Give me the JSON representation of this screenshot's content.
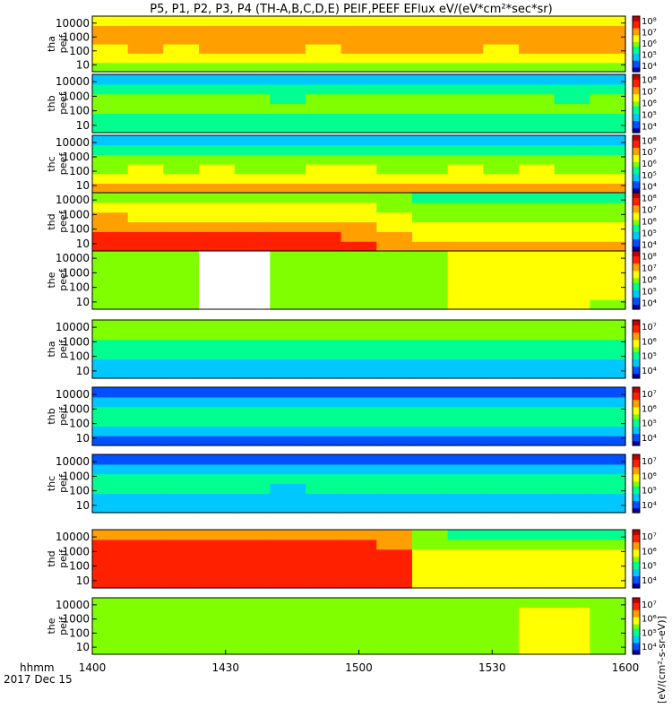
{
  "chart_data": {
    "type": "heatmap",
    "title": "P5, P1, P2, P3, P4 (TH-A,B,C,D,E) PEIF,PEEF EFlux eV/(eV*cm²*sec*sr)",
    "x_tick_labels": [
      "1400",
      "1430",
      "1500",
      "1530",
      "1600"
    ],
    "x_range_hhmm": [
      "1400",
      "1600"
    ],
    "x_corner_label": "hhmm",
    "date_label": "2017 Dec 15",
    "y_tick_labels": [
      "10",
      "100",
      "1000",
      "10000"
    ],
    "y_scale": "log",
    "colorbar_label": "[eV/(cm²-s-sr-eV)]",
    "colorscale": [
      "#0000a0",
      "#0050ff",
      "#00c8ff",
      "#00ff90",
      "#80ff00",
      "#ffff00",
      "#ffa000",
      "#ff2000",
      "#c00000"
    ],
    "panels": [
      {
        "ylabel": [
          "tha",
          "peif"
        ],
        "colorbar_ticks": [
          "10⁴",
          "10⁵",
          "10⁶",
          "10⁷",
          "10⁸"
        ],
        "time_flux_profile": [
          0.74,
          0.76,
          0.75,
          0.77,
          0.78,
          0.76,
          0.75,
          0.76,
          0.78,
          0.77,
          0.76,
          0.75,
          0.77,
          0.78,
          0.79
        ],
        "energy_flux_profile": [
          0.35,
          0.55,
          0.68,
          0.74,
          0.7,
          0.58
        ]
      },
      {
        "ylabel": [
          "thb",
          "peef"
        ],
        "colorbar_ticks": [
          "10⁴",
          "10⁵",
          "10⁶",
          "10⁷",
          "10⁸"
        ],
        "time_flux_profile": [
          0.5,
          0.52,
          0.5,
          0.51,
          0.5,
          0.49,
          0.52,
          0.5,
          0.5,
          0.51,
          0.5,
          0.52,
          0.5,
          0.49,
          0.5
        ],
        "energy_flux_profile": [
          0.3,
          0.45,
          0.5,
          0.48,
          0.3,
          0.1
        ]
      },
      {
        "ylabel": [
          "thc",
          "peef"
        ],
        "colorbar_ticks": [
          "10⁴",
          "10⁵",
          "10⁶",
          "10⁷",
          "10⁸"
        ],
        "time_flux_profile": [
          0.6,
          0.62,
          0.6,
          0.61,
          0.6,
          0.6,
          0.62,
          0.61,
          0.6,
          0.6,
          0.61,
          0.6,
          0.62,
          0.6,
          0.6
        ],
        "energy_flux_profile": [
          0.9,
          0.78,
          0.6,
          0.45,
          0.3,
          0.1
        ]
      },
      {
        "ylabel": [
          "thd",
          "peef"
        ],
        "colorbar_ticks": [
          "10⁴",
          "10⁵",
          "10⁶",
          "10⁷",
          "10⁸"
        ],
        "time_flux_profile": [
          0.9,
          0.88,
          0.87,
          0.86,
          0.85,
          0.84,
          0.86,
          0.8,
          0.7,
          0.6,
          0.55,
          0.55,
          0.54,
          0.55,
          0.55
        ],
        "energy_flux_profile": [
          0.9,
          0.82,
          0.72,
          0.55,
          0.45,
          0.3
        ]
      },
      {
        "ylabel": [
          "the",
          "peef"
        ],
        "colorbar_ticks": [
          "10⁴",
          "10⁵",
          "10⁶",
          "10⁷",
          "10⁸"
        ],
        "time_flux_profile": [
          0.5,
          0.48,
          0.5,
          null,
          null,
          0.49,
          0.48,
          0.5,
          0.52,
          0.6,
          0.75,
          0.76,
          0.72,
          0.74,
          0.7
        ],
        "energy_flux_profile": [
          0.5,
          0.55,
          0.6,
          0.6,
          0.58,
          0.55
        ]
      },
      {
        "ylabel": [
          "tha",
          "peif"
        ],
        "colorbar_ticks": [
          "10⁴",
          "10⁵",
          "10⁶",
          "10⁷"
        ],
        "time_flux_profile": [
          0.42,
          0.4,
          0.38,
          0.4,
          0.41,
          0.4,
          0.39,
          0.4,
          0.42,
          0.4,
          0.41,
          0.4,
          0.4,
          0.39,
          0.4
        ],
        "energy_flux_profile": [
          0.15,
          0.28,
          0.42,
          0.55,
          0.62,
          0.6
        ]
      },
      {
        "ylabel": [
          "thb",
          "peif"
        ],
        "colorbar_ticks": [
          "10⁴",
          "10⁵",
          "10⁶",
          "10⁷"
        ],
        "time_flux_profile": [
          0.3,
          0.32,
          0.3,
          0.31,
          0.3,
          0.3,
          0.32,
          0.3,
          0.31,
          0.3,
          0.3,
          0.31,
          0.3,
          0.3,
          0.3
        ],
        "energy_flux_profile": [
          0.2,
          0.3,
          0.5,
          0.45,
          0.3,
          0.15
        ]
      },
      {
        "ylabel": [
          "thc",
          "peif"
        ],
        "colorbar_ticks": [
          "10⁴",
          "10⁵",
          "10⁶",
          "10⁷"
        ],
        "time_flux_profile": [
          0.3,
          0.3,
          0.31,
          0.3,
          0.3,
          0.29,
          0.3,
          0.31,
          0.3,
          0.3,
          0.31,
          0.3,
          0.3,
          0.3,
          0.3
        ],
        "energy_flux_profile": [
          0.25,
          0.3,
          0.45,
          0.5,
          0.35,
          0.15
        ]
      },
      {
        "ylabel": [
          "thd",
          "peif"
        ],
        "colorbar_ticks": [
          "10⁴",
          "10⁵",
          "10⁶",
          "10⁷"
        ],
        "time_flux_profile": [
          0.92,
          0.93,
          0.94,
          0.94,
          0.93,
          0.92,
          0.93,
          0.92,
          0.9,
          0.45,
          0.42,
          0.4,
          0.38,
          0.4,
          0.38
        ],
        "energy_flux_profile": [
          0.85,
          0.88,
          0.9,
          0.85,
          0.75,
          0.55
        ]
      },
      {
        "ylabel": [
          "the",
          "peif"
        ],
        "colorbar_ticks": [
          "10⁴",
          "10⁵",
          "10⁶",
          "10⁷"
        ],
        "time_flux_profile": [
          0.5,
          0.52,
          0.5,
          0.5,
          0.5,
          0.5,
          0.5,
          0.5,
          0.55,
          0.5,
          0.6,
          0.65,
          0.68,
          0.66,
          0.64
        ],
        "energy_flux_profile": [
          0.55,
          0.55,
          0.55,
          0.55,
          0.55,
          0.5
        ]
      }
    ]
  }
}
